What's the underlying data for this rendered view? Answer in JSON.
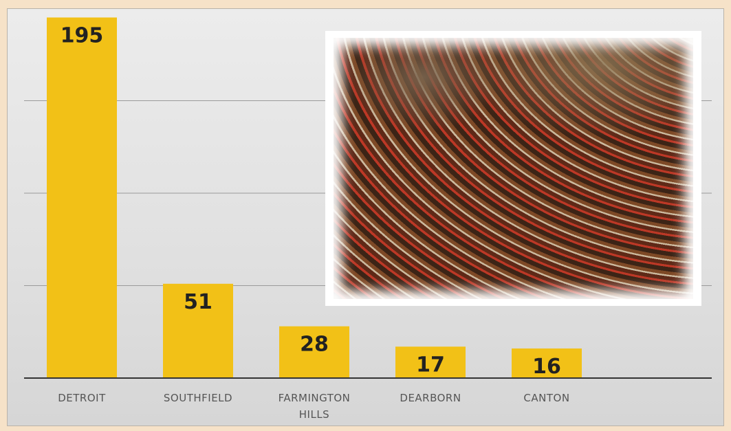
{
  "chart_data": {
    "type": "bar",
    "categories": [
      "DETROIT",
      "SOUTHFIELD",
      "FARMINGTON HILLS",
      "DEARBORN",
      "CANTON"
    ],
    "values": [
      195,
      51,
      28,
      17,
      16
    ],
    "color": "#f2c117",
    "ylim": [
      0,
      200
    ],
    "yticks": [
      50,
      100,
      150
    ],
    "grid": true
  }
}
